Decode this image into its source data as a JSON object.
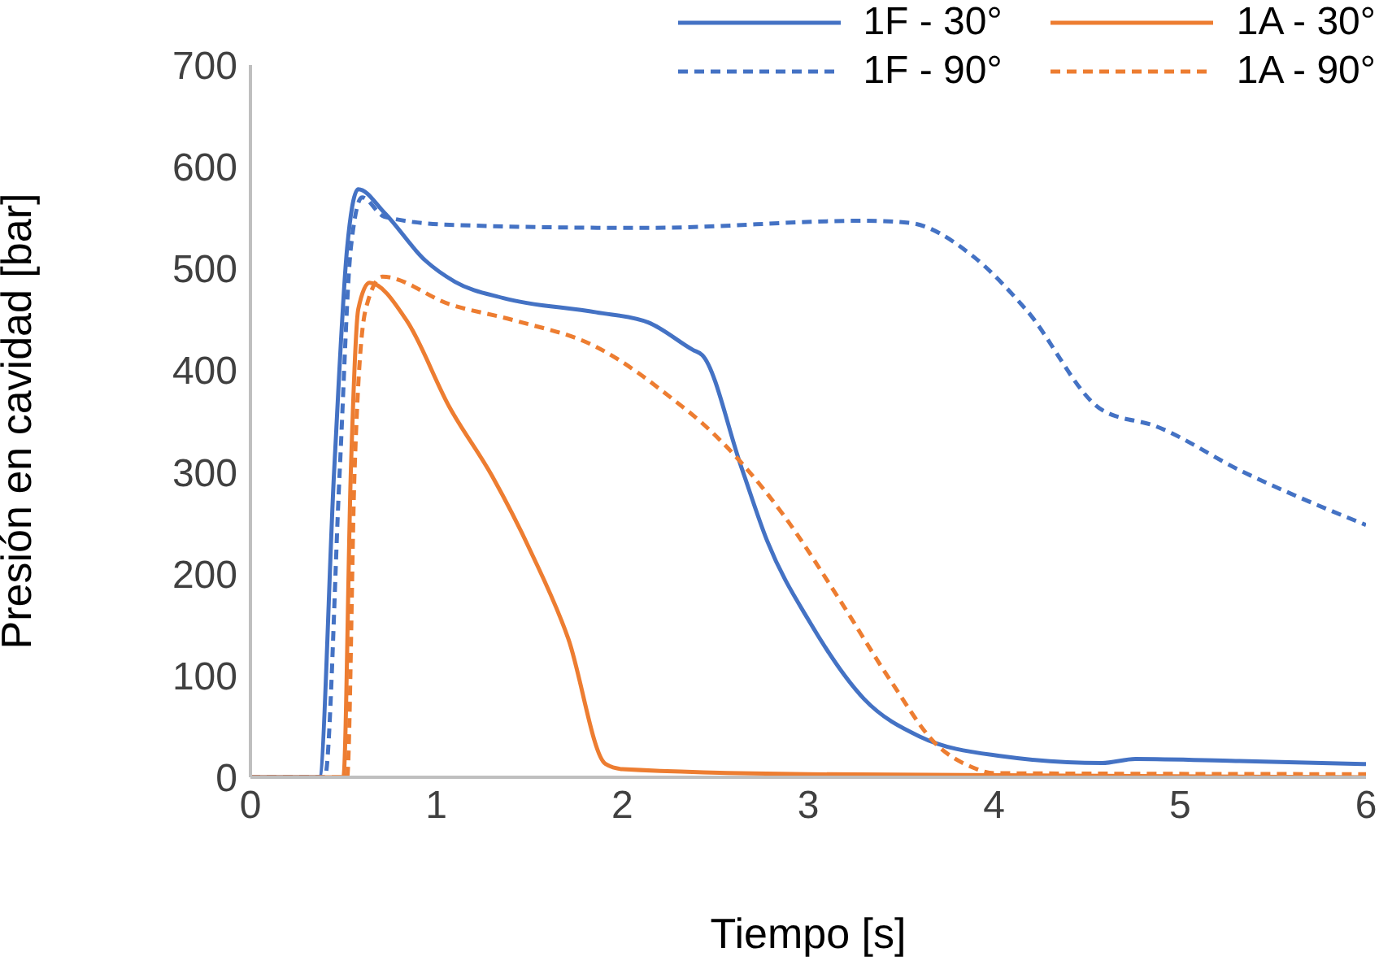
{
  "chart_data": {
    "type": "line",
    "xlabel": "Tiempo [s]",
    "ylabel": "Presión en cavidad [bar]",
    "xlim": [
      0,
      6
    ],
    "xticks": [
      0,
      1,
      2,
      3,
      4,
      5,
      6
    ],
    "ylim": [
      0,
      700
    ],
    "yticks": [
      0,
      100,
      200,
      300,
      400,
      500,
      600,
      700
    ],
    "grid": false,
    "legend": "top right",
    "marker": "none",
    "series": [
      {
        "name": "1F - 30°",
        "color": "#4472c4",
        "line_style": "solid",
        "x": [
          0,
          0.37,
          0.45,
          0.52,
          0.58,
          0.72,
          0.94,
          1.1,
          1.36,
          1.86,
          2.14,
          2.38,
          2.43,
          2.64,
          2.78,
          3.01,
          3.3,
          3.6,
          4.03,
          4.58,
          4.76,
          5.3,
          6
        ],
        "values": [
          0,
          0,
          300,
          520,
          578,
          555,
          508,
          487,
          471,
          457,
          447,
          420,
          415,
          305,
          232,
          152,
          77,
          40,
          21,
          14,
          18,
          16,
          13
        ]
      },
      {
        "name": "1A - 30°",
        "color": "#ed7d31",
        "line_style": "solid",
        "x": [
          0,
          0.5,
          0.54,
          0.58,
          0.64,
          0.84,
          1.07,
          1.3,
          1.51,
          1.71,
          1.91,
          2.0,
          3,
          6
        ],
        "values": [
          0,
          0,
          300,
          460,
          486,
          449,
          364,
          296,
          221,
          136,
          13,
          8,
          3,
          0
        ]
      },
      {
        "name": "1F - 90°",
        "color": "#4472c4",
        "line_style": "dashed",
        "x": [
          0,
          0.4,
          0.48,
          0.54,
          0.6,
          0.72,
          1.07,
          2.0,
          2.14,
          3.3,
          3.54,
          3.88,
          4.17,
          4.58,
          4.87,
          5.34,
          5.63,
          6
        ],
        "values": [
          0,
          0,
          300,
          520,
          570,
          551,
          543,
          540,
          540,
          547,
          545,
          513,
          460,
          361,
          345,
          300,
          276,
          248
        ]
      },
      {
        "name": "1A - 90°",
        "color": "#ed7d31",
        "line_style": "dashed",
        "x": [
          0,
          0.52,
          0.56,
          0.62,
          0.71,
          1.07,
          1.42,
          1.86,
          2.29,
          2.43,
          2.87,
          3.16,
          3.45,
          3.68,
          3.88,
          4.0,
          6
        ],
        "values": [
          0,
          0,
          300,
          460,
          492,
          465,
          449,
          423,
          369,
          348,
          257,
          177,
          93,
          34,
          10,
          4,
          3
        ]
      }
    ]
  }
}
